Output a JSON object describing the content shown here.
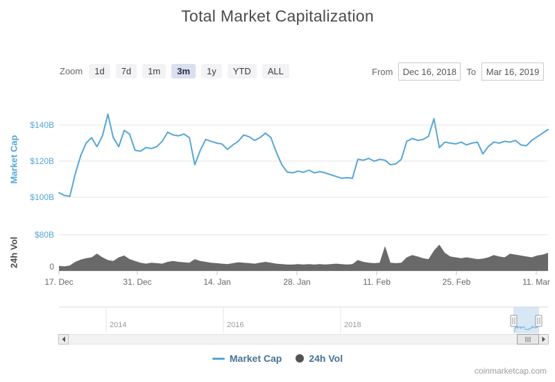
{
  "title": "Total Market Capitalization",
  "toolbar": {
    "zoom_label": "Zoom",
    "buttons": [
      {
        "label": "1d",
        "selected": false
      },
      {
        "label": "7d",
        "selected": false
      },
      {
        "label": "1m",
        "selected": false
      },
      {
        "label": "3m",
        "selected": true
      },
      {
        "label": "1y",
        "selected": false
      },
      {
        "label": "YTD",
        "selected": false
      },
      {
        "label": "ALL",
        "selected": false
      }
    ],
    "from_label": "From",
    "from_value": "Dec 16, 2018",
    "to_label": "To",
    "to_value": "Mar 16, 2019"
  },
  "chart_data": [
    {
      "type": "line",
      "title": "Total Market Capitalization",
      "series_name": "Market Cap",
      "unit": "USD billions",
      "color": "#55a5d7",
      "x_range": [
        "Dec 16, 2018",
        "Mar 16, 2019"
      ],
      "x_tick_labels": [
        "17. Dec",
        "31. Dec",
        "14. Jan",
        "28. Jan",
        "11. Feb",
        "25. Feb",
        "11. Mar"
      ],
      "ylabel": "Market Cap",
      "y_tick_labels": [
        "$100B",
        "$120B",
        "$140B"
      ],
      "ylim_b": [
        94,
        151
      ],
      "grid": true,
      "values_usd_b_daily": [
        102.5,
        101,
        100.5,
        113,
        123,
        130,
        133,
        128,
        134,
        146,
        133,
        128,
        137,
        135,
        126,
        125.5,
        127.5,
        127,
        128,
        131,
        136,
        134.5,
        134,
        135,
        133,
        118,
        126,
        132,
        131,
        130,
        129.5,
        126.5,
        129,
        131,
        134.5,
        133.5,
        131.5,
        133,
        135.5,
        133,
        125,
        118,
        114,
        113.5,
        114.5,
        113.8,
        115,
        113.5,
        114.2,
        113.5,
        112.5,
        111.5,
        110.5,
        110.8,
        110.5,
        121,
        120.5,
        121.5,
        120,
        121,
        120.5,
        118,
        118.5,
        121,
        131,
        132.5,
        131.5,
        132,
        133.8,
        143.5,
        127.5,
        130.5,
        130,
        129.5,
        130.5,
        129,
        130,
        130.5,
        124,
        128,
        130.5,
        130,
        131,
        130.5,
        131.5,
        129,
        128.5,
        131.5,
        133.5,
        135.5,
        137.5
      ]
    },
    {
      "type": "area",
      "series_name": "24h Vol",
      "unit": "USD billions",
      "color": "#696969",
      "ylabel": "24h Vol",
      "y_tick_labels": [
        "0",
        "$80B"
      ],
      "ylim_b": [
        0,
        80
      ],
      "grid": false,
      "values_usd_b_daily": [
        11,
        10,
        12,
        20,
        25,
        28,
        30,
        38,
        30,
        24,
        22,
        30,
        34,
        26,
        22,
        18,
        16,
        18,
        17,
        16,
        20,
        22,
        20,
        19,
        18,
        26,
        22,
        20,
        18,
        17,
        16,
        15,
        17,
        19,
        18,
        17,
        16,
        18,
        20,
        18,
        16,
        15,
        14,
        14,
        15,
        14,
        15,
        14,
        15,
        14,
        15,
        16,
        15,
        14,
        15,
        24,
        20,
        18,
        17,
        18,
        55,
        18,
        17,
        18,
        30,
        35,
        32,
        28,
        26,
        45,
        58,
        40,
        32,
        30,
        28,
        30,
        28,
        26,
        27,
        30,
        35,
        32,
        30,
        38,
        36,
        34,
        32,
        30,
        34,
        36,
        40
      ]
    }
  ],
  "navigator": {
    "year_labels": [
      "2014",
      "2016",
      "2018"
    ]
  },
  "legend": {
    "items": [
      {
        "label": "Market Cap",
        "marker": "line",
        "color": "#55a5d7"
      },
      {
        "label": "24h Vol",
        "marker": "circle",
        "color": "#545454"
      }
    ]
  },
  "footer": {
    "watermark": "coinmarketcap.com"
  },
  "colors": {
    "line_blue": "#55a5d7",
    "volume_gray": "#696969",
    "gridline": "#e6e6e6",
    "selected_button_bg": "#dbe0f1",
    "navigator_mask": "#c8ddf1"
  }
}
